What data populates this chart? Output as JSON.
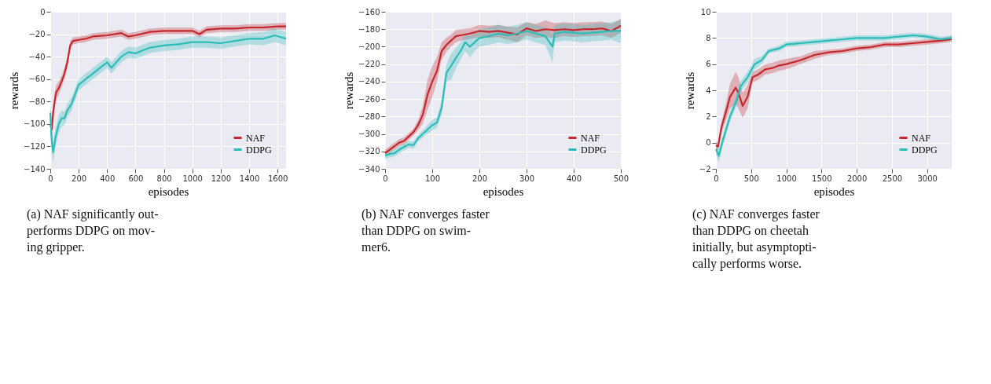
{
  "chart_data": [
    {
      "type": "line",
      "xlabel": "episodes",
      "ylabel": "rewards",
      "xlim": [
        0,
        1660
      ],
      "ylim": [
        -140,
        0
      ],
      "xticks": [
        0,
        200,
        400,
        600,
        800,
        1000,
        1200,
        1400,
        1600
      ],
      "yticks": [
        -140,
        -120,
        -100,
        -80,
        -60,
        -40,
        -20,
        0
      ],
      "grid": true,
      "legend": "bottom right",
      "annotations": [
        "(a) NAF significantly out-",
        "performs DDPG on mov-",
        "ing gripper."
      ],
      "series": [
        {
          "name": "NAF",
          "color": "#c4272c",
          "x": [
            0,
            10,
            20,
            40,
            60,
            80,
            100,
            120,
            140,
            160,
            200,
            250,
            300,
            400,
            500,
            550,
            600,
            700,
            800,
            900,
            1000,
            1050,
            1100,
            1200,
            1300,
            1400,
            1500,
            1600,
            1660
          ],
          "values": [
            -100,
            -105,
            -90,
            -72,
            -68,
            -62,
            -55,
            -45,
            -30,
            -26,
            -25,
            -24,
            -22,
            -21,
            -19,
            -22,
            -21,
            -18,
            -17,
            -17,
            -17,
            -20,
            -16,
            -15,
            -15,
            -14,
            -14,
            -13,
            -13
          ],
          "lower": [
            -110,
            -112,
            -97,
            -78,
            -74,
            -67,
            -60,
            -50,
            -34,
            -29,
            -28,
            -27,
            -25,
            -24,
            -22,
            -25,
            -24,
            -21,
            -20,
            -20,
            -20,
            -23,
            -19,
            -18,
            -18,
            -17,
            -17,
            -16,
            -16
          ],
          "upper": [
            -85,
            -96,
            -82,
            -66,
            -62,
            -57,
            -50,
            -40,
            -26,
            -23,
            -22,
            -21,
            -19,
            -18,
            -16,
            -19,
            -18,
            -15,
            -14,
            -14,
            -14,
            -17,
            -13,
            -12,
            -12,
            -11,
            -11,
            -10,
            -10
          ]
        },
        {
          "name": "DDPG",
          "color": "#2bbcb8",
          "x": [
            0,
            10,
            20,
            40,
            60,
            80,
            100,
            120,
            150,
            200,
            250,
            300,
            350,
            400,
            430,
            500,
            550,
            600,
            700,
            800,
            900,
            1000,
            1100,
            1200,
            1300,
            1400,
            1500,
            1580,
            1660
          ],
          "values": [
            -90,
            -115,
            -125,
            -110,
            -100,
            -95,
            -95,
            -88,
            -82,
            -65,
            -60,
            -55,
            -50,
            -45,
            -50,
            -40,
            -36,
            -37,
            -32,
            -30,
            -29,
            -27,
            -27,
            -28,
            -26,
            -24,
            -24,
            -21,
            -24
          ],
          "lower": [
            -100,
            -125,
            -135,
            -118,
            -108,
            -102,
            -101,
            -94,
            -88,
            -70,
            -65,
            -60,
            -55,
            -50,
            -55,
            -45,
            -41,
            -42,
            -37,
            -35,
            -34,
            -32,
            -32,
            -33,
            -31,
            -29,
            -30,
            -27,
            -30
          ],
          "upper": [
            -82,
            -106,
            -115,
            -102,
            -92,
            -88,
            -89,
            -82,
            -76,
            -60,
            -55,
            -50,
            -45,
            -40,
            -45,
            -35,
            -31,
            -32,
            -27,
            -25,
            -24,
            -22,
            -22,
            -23,
            -21,
            -19,
            -18,
            -15,
            -18
          ]
        }
      ]
    },
    {
      "type": "line",
      "xlabel": "episodes",
      "ylabel": "rewards",
      "xlim": [
        0,
        500
      ],
      "ylim": [
        -340,
        -160
      ],
      "xticks": [
        0,
        100,
        200,
        300,
        400,
        500
      ],
      "yticks": [
        -340,
        -320,
        -300,
        -280,
        -260,
        -240,
        -220,
        -200,
        -180,
        -160
      ],
      "grid": true,
      "legend": "bottom right",
      "annotations": [
        "(b) NAF converges faster",
        "than  DDPG  on  swim-",
        "mer6."
      ],
      "series": [
        {
          "name": "NAF",
          "color": "#c4272c",
          "x": [
            0,
            10,
            20,
            30,
            40,
            50,
            60,
            70,
            80,
            90,
            100,
            110,
            120,
            130,
            140,
            150,
            160,
            180,
            200,
            220,
            240,
            260,
            280,
            300,
            320,
            340,
            360,
            380,
            400,
            420,
            440,
            460,
            480,
            500
          ],
          "values": [
            -322,
            -318,
            -314,
            -310,
            -308,
            -303,
            -298,
            -290,
            -278,
            -255,
            -240,
            -228,
            -205,
            -198,
            -193,
            -188,
            -187,
            -185,
            -182,
            -183,
            -182,
            -184,
            -186,
            -179,
            -182,
            -180,
            -181,
            -180,
            -181,
            -180,
            -180,
            -179,
            -182,
            -176
          ],
          "lower": [
            -326,
            -322,
            -318,
            -314,
            -312,
            -307,
            -302,
            -296,
            -288,
            -272,
            -258,
            -240,
            -215,
            -206,
            -200,
            -195,
            -193,
            -191,
            -189,
            -190,
            -189,
            -192,
            -195,
            -187,
            -190,
            -189,
            -190,
            -188,
            -189,
            -188,
            -188,
            -187,
            -190,
            -184
          ],
          "upper": [
            -318,
            -314,
            -310,
            -306,
            -304,
            -299,
            -294,
            -284,
            -268,
            -238,
            -222,
            -212,
            -195,
            -190,
            -186,
            -181,
            -180,
            -179,
            -175,
            -176,
            -175,
            -177,
            -178,
            -172,
            -174,
            -170,
            -173,
            -172,
            -173,
            -172,
            -172,
            -171,
            -174,
            -168
          ]
        },
        {
          "name": "DDPG",
          "color": "#2bbcb8",
          "x": [
            0,
            10,
            20,
            30,
            40,
            50,
            60,
            70,
            80,
            90,
            100,
            110,
            120,
            125,
            130,
            140,
            150,
            160,
            170,
            180,
            190,
            200,
            220,
            240,
            260,
            280,
            300,
            320,
            340,
            355,
            360,
            380,
            400,
            420,
            440,
            460,
            480,
            500
          ],
          "values": [
            -325,
            -323,
            -322,
            -318,
            -315,
            -312,
            -313,
            -305,
            -300,
            -295,
            -290,
            -287,
            -270,
            -250,
            -230,
            -222,
            -213,
            -205,
            -195,
            -200,
            -195,
            -190,
            -188,
            -185,
            -187,
            -185,
            -182,
            -185,
            -188,
            -200,
            -185,
            -183,
            -184,
            -185,
            -184,
            -183,
            -182,
            -182
          ],
          "lower": [
            -329,
            -327,
            -326,
            -322,
            -319,
            -316,
            -317,
            -309,
            -304,
            -300,
            -296,
            -293,
            -278,
            -258,
            -240,
            -238,
            -225,
            -215,
            -205,
            -212,
            -205,
            -200,
            -198,
            -195,
            -197,
            -195,
            -192,
            -195,
            -198,
            -218,
            -195,
            -193,
            -194,
            -195,
            -194,
            -193,
            -192,
            -196
          ],
          "upper": [
            -321,
            -319,
            -318,
            -314,
            -311,
            -308,
            -309,
            -301,
            -296,
            -290,
            -284,
            -281,
            -262,
            -242,
            -220,
            -208,
            -201,
            -195,
            -185,
            -188,
            -185,
            -180,
            -178,
            -175,
            -177,
            -175,
            -172,
            -175,
            -178,
            -186,
            -175,
            -173,
            -174,
            -175,
            -174,
            -173,
            -172,
            -170
          ]
        }
      ]
    },
    {
      "type": "line",
      "xlabel": "episodes",
      "ylabel": "rewards",
      "xlim": [
        0,
        3350
      ],
      "ylim": [
        -2,
        10
      ],
      "xticks": [
        0,
        500,
        1000,
        1500,
        2000,
        2500,
        3000
      ],
      "yticks": [
        -2,
        0,
        2,
        4,
        6,
        8,
        10
      ],
      "grid": true,
      "legend": "bottom right",
      "annotations": [
        "(c) NAF converges faster",
        "than  DDPG  on  cheetah",
        "initially,  but  asymptopti-",
        "cally performs worse."
      ],
      "series": [
        {
          "name": "NAF",
          "color": "#c4272c",
          "x": [
            0,
            30,
            80,
            150,
            200,
            280,
            320,
            380,
            450,
            520,
            600,
            700,
            800,
            900,
            1000,
            1200,
            1400,
            1600,
            1800,
            2000,
            2200,
            2400,
            2600,
            2800,
            3000,
            3200,
            3350
          ],
          "values": [
            -0.2,
            -0.3,
            1.2,
            2.5,
            3.5,
            4.2,
            3.8,
            2.8,
            3.5,
            5.0,
            5.2,
            5.6,
            5.7,
            5.9,
            6.0,
            6.3,
            6.7,
            6.9,
            7.0,
            7.2,
            7.3,
            7.5,
            7.5,
            7.6,
            7.7,
            7.8,
            7.9
          ],
          "lower": [
            -0.5,
            -0.6,
            0.8,
            1.8,
            2.6,
            3.0,
            2.6,
            1.9,
            2.6,
            4.6,
            4.8,
            5.2,
            5.3,
            5.5,
            5.6,
            6.0,
            6.4,
            6.7,
            6.8,
            7.0,
            7.1,
            7.3,
            7.3,
            7.4,
            7.5,
            7.6,
            7.7
          ],
          "upper": [
            0.1,
            0.0,
            1.6,
            3.2,
            4.5,
            5.4,
            5.0,
            3.8,
            4.4,
            5.4,
            5.6,
            6.0,
            6.1,
            6.3,
            6.4,
            6.6,
            7.0,
            7.1,
            7.2,
            7.4,
            7.5,
            7.7,
            7.7,
            7.8,
            7.9,
            8.0,
            8.1
          ]
        },
        {
          "name": "DDPG",
          "color": "#2bbcb8",
          "x": [
            0,
            40,
            100,
            200,
            300,
            350,
            450,
            550,
            650,
            750,
            900,
            1000,
            1200,
            1400,
            1600,
            1800,
            2000,
            2400,
            2800,
            3000,
            3200,
            3350
          ],
          "values": [
            -0.5,
            -1.0,
            0.2,
            2.0,
            3.3,
            4.3,
            5.0,
            6.0,
            6.3,
            7.0,
            7.2,
            7.5,
            7.6,
            7.7,
            7.8,
            7.9,
            8.0,
            8.0,
            8.2,
            8.1,
            7.9,
            8.0
          ],
          "lower": [
            -0.9,
            -1.5,
            -0.2,
            1.6,
            2.9,
            3.9,
            4.6,
            5.6,
            6.0,
            6.8,
            7.0,
            7.3,
            7.4,
            7.5,
            7.6,
            7.7,
            7.8,
            7.8,
            8.0,
            7.9,
            7.7,
            7.8
          ],
          "upper": [
            -0.1,
            -0.5,
            0.6,
            2.4,
            3.7,
            4.7,
            5.4,
            6.4,
            6.6,
            7.2,
            7.4,
            7.7,
            7.8,
            7.9,
            8.0,
            8.1,
            8.2,
            8.2,
            8.4,
            8.3,
            8.1,
            8.2
          ]
        }
      ]
    }
  ]
}
